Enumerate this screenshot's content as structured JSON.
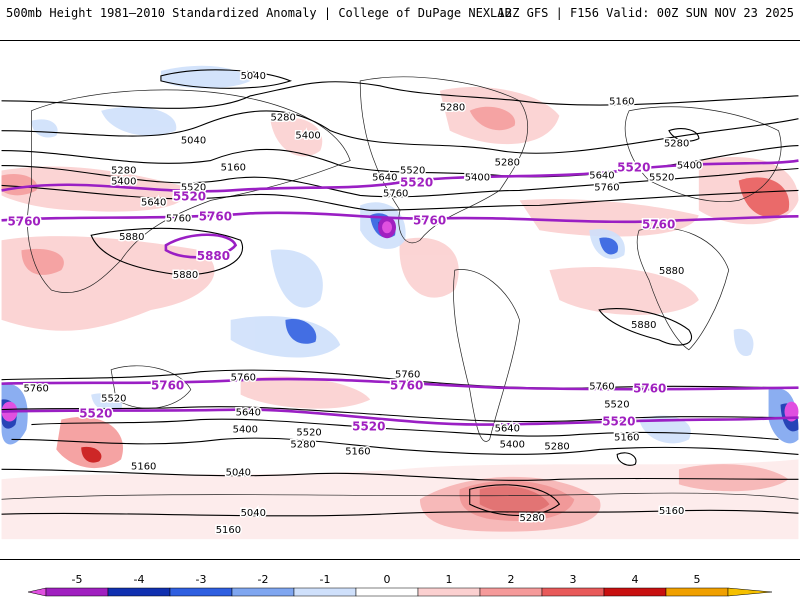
{
  "header": {
    "left": "500mb Height 1981–2010 Standardized Anomaly | College of DuPage NEXLAB",
    "right": "12Z GFS | F156 Valid: 00Z SUN NOV 23 2025"
  },
  "contour_labels": {
    "c5040": "5040",
    "c5160": "5160",
    "c5280": "5280",
    "c5400": "5400",
    "c5520": "5520",
    "c5640": "5640",
    "c5760": "5760",
    "c5880": "5880"
  },
  "key_contours": {
    "p5520": "5520",
    "p5760": "5760",
    "p5880": "5880"
  },
  "colorbar": {
    "labels": [
      "-5",
      "-4",
      "-3",
      "-2",
      "-1",
      "0",
      "1",
      "2",
      "3",
      "4",
      "5"
    ],
    "colors": [
      "#e050e0",
      "#a020c0",
      "#1030b0",
      "#2f5fe0",
      "#7fa6f0",
      "#cfe0fb",
      "#ffffff",
      "#fbd0d0",
      "#f59a9a",
      "#e85a5a",
      "#c81010",
      "#f0a000",
      "#f5c000"
    ]
  }
}
